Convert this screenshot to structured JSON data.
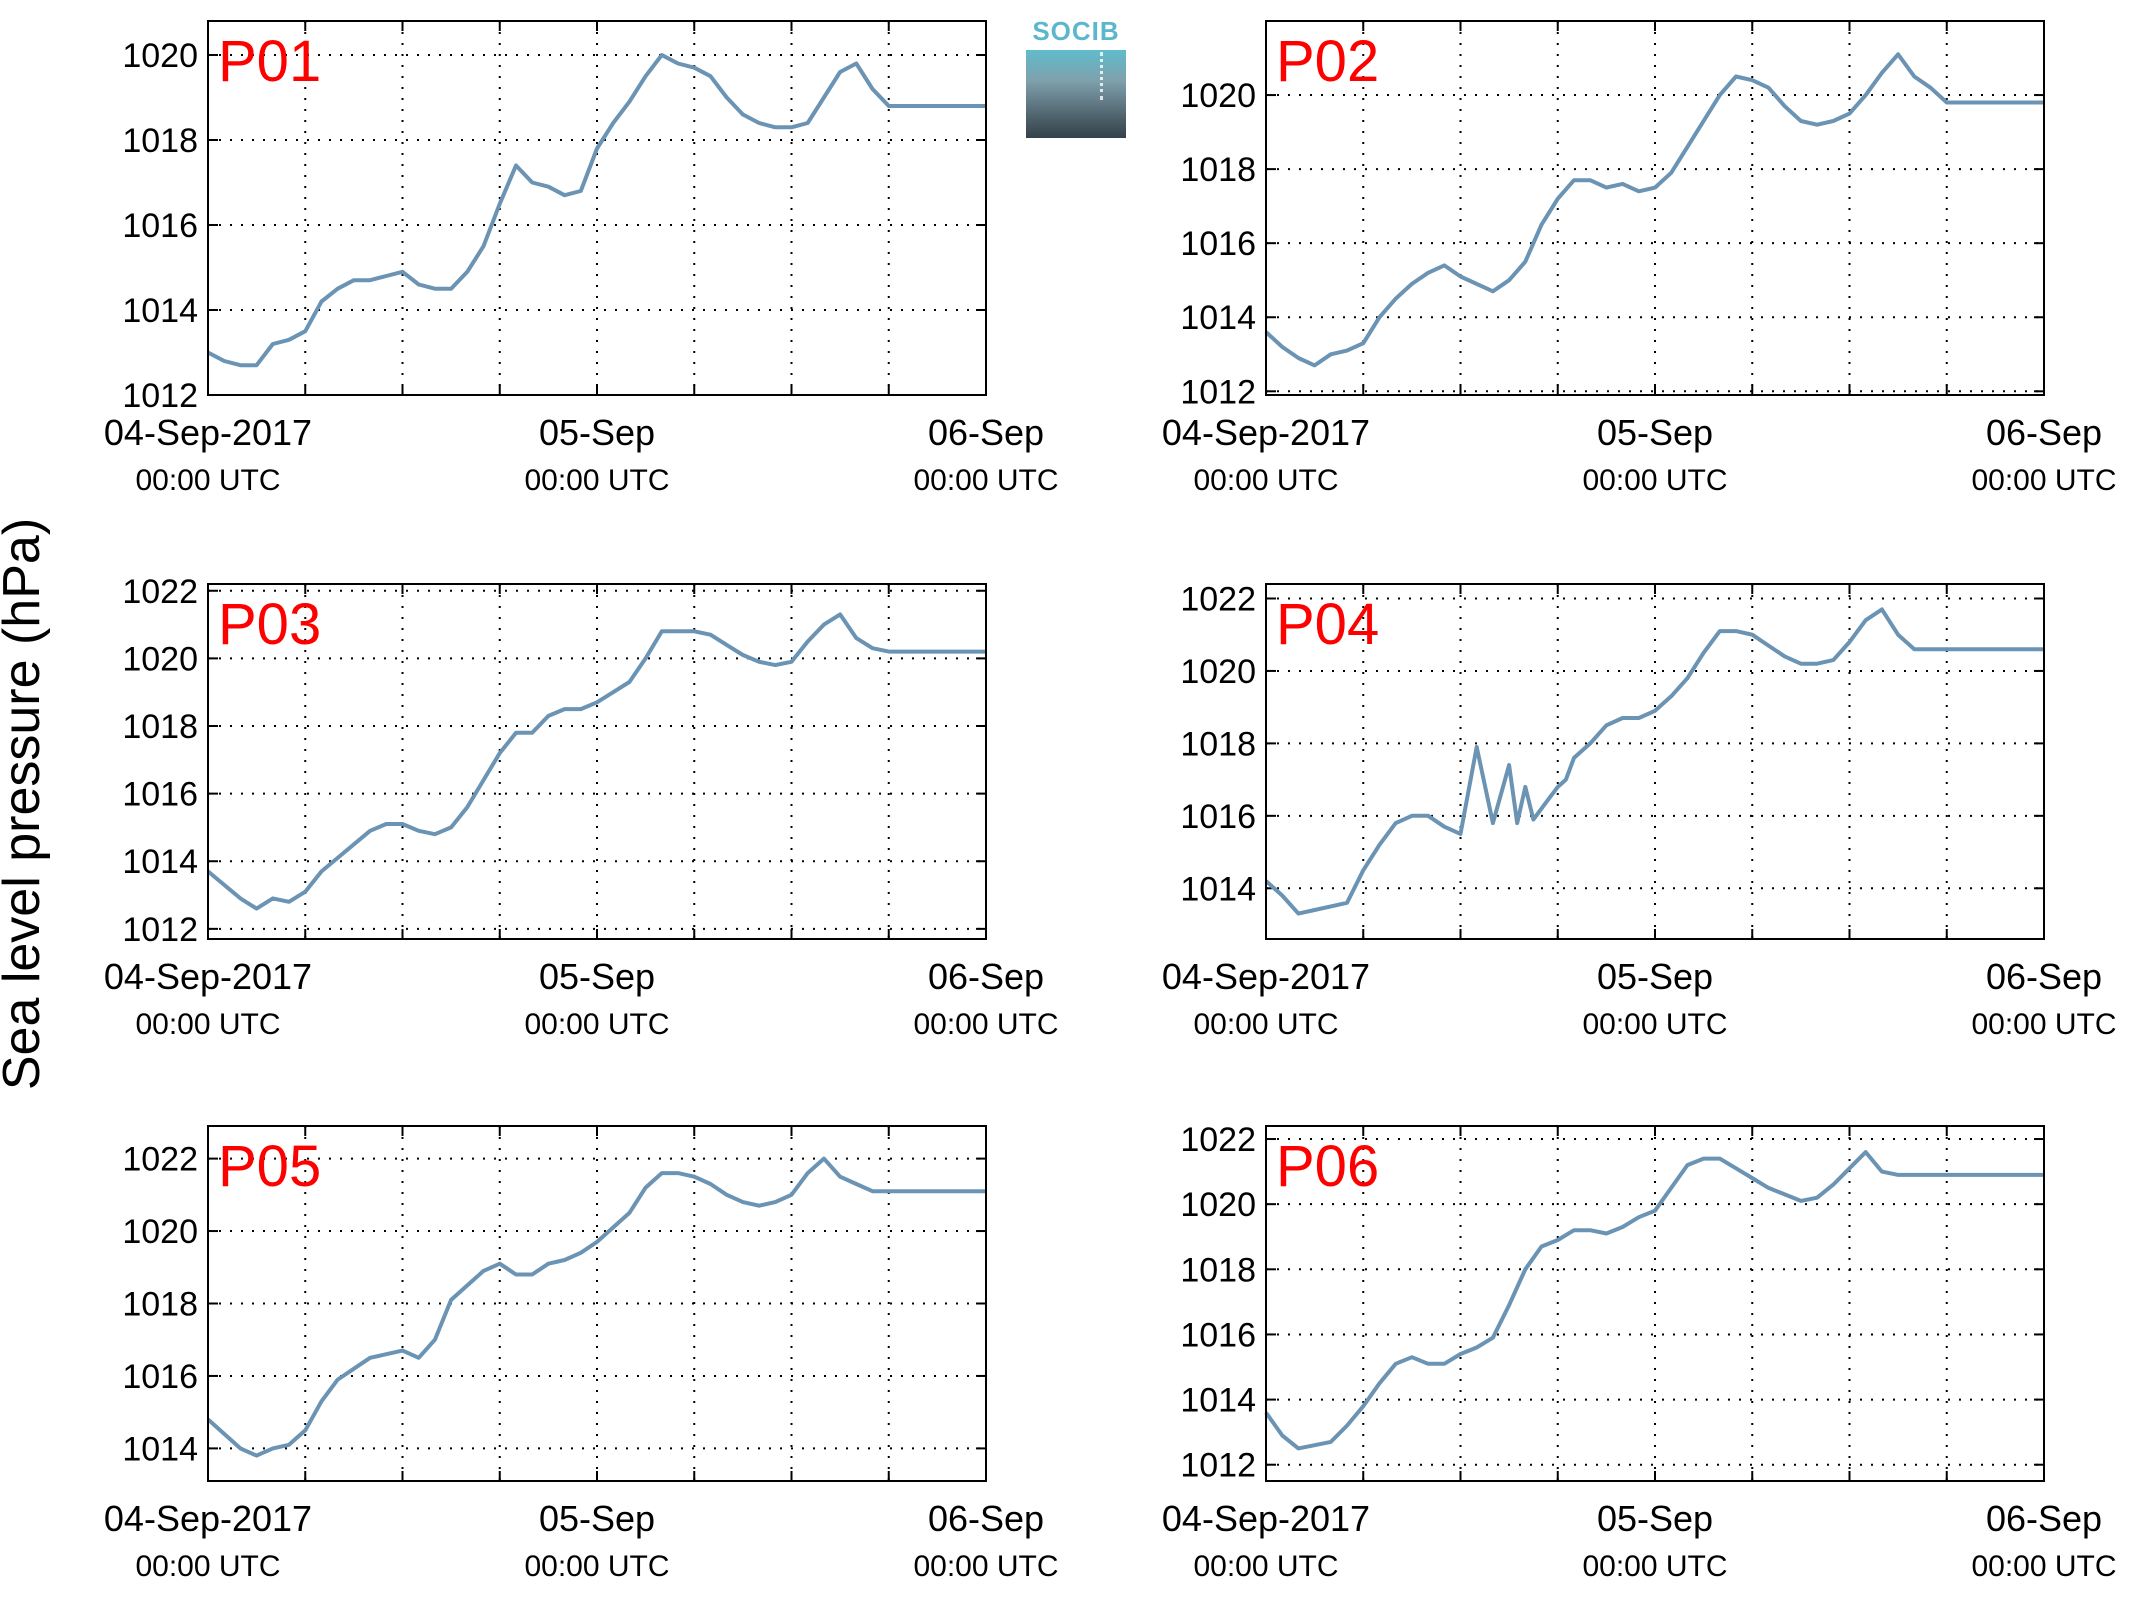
{
  "ylabel": "Sea level pressure (hPa)",
  "logo_text": "SOCIB",
  "line_color": "#6b93b3",
  "label_color": "#ff0000",
  "x_tick_labels": [
    {
      "date": "04-Sep-2017",
      "time": "00:00 UTC",
      "hours": 0
    },
    {
      "date": "05-Sep",
      "time": "00:00 UTC",
      "hours": 24
    },
    {
      "date": "06-Sep",
      "time": "00:00 UTC",
      "hours": 48
    }
  ],
  "chart_data": [
    {
      "type": "line",
      "title": "P01",
      "xlim": [
        0,
        48
      ],
      "ylim": [
        1012,
        1020.8
      ],
      "yticks": [
        1012,
        1014,
        1016,
        1018,
        1020
      ],
      "x": [
        0,
        1,
        2,
        3,
        4,
        5,
        6,
        7,
        8,
        9,
        10,
        11,
        12,
        13,
        14,
        15,
        16,
        17,
        18,
        19,
        20,
        21,
        22,
        23,
        24,
        25,
        26,
        27,
        28,
        29,
        30,
        31,
        32,
        33,
        34,
        35,
        36,
        37,
        38,
        39,
        40,
        41,
        42,
        43,
        44,
        45,
        46,
        47,
        48
      ],
      "y": [
        1013.0,
        1012.8,
        1012.7,
        1012.7,
        1013.2,
        1013.3,
        1013.5,
        1014.2,
        1014.5,
        1014.7,
        1014.7,
        1014.8,
        1014.9,
        1014.6,
        1014.5,
        1014.5,
        1014.9,
        1015.5,
        1016.5,
        1017.4,
        1017.0,
        1016.9,
        1016.7,
        1016.8,
        1017.8,
        1018.4,
        1018.9,
        1019.5,
        1020.0,
        1019.8,
        1019.7,
        1019.5,
        1019.0,
        1018.6,
        1018.4,
        1018.3,
        1018.3,
        1018.4,
        1019.0,
        1019.6,
        1019.8,
        1019.2,
        1018.8,
        1018.8,
        1018.8,
        1018.8,
        1018.8,
        1018.8,
        1018.8
      ]
    },
    {
      "type": "line",
      "title": "P02",
      "xlim": [
        0,
        48
      ],
      "ylim": [
        1011.9,
        1022.0
      ],
      "yticks": [
        1012,
        1014,
        1016,
        1018,
        1020
      ],
      "x": [
        0,
        1,
        2,
        3,
        4,
        5,
        6,
        7,
        8,
        9,
        10,
        11,
        12,
        13,
        14,
        15,
        16,
        17,
        18,
        19,
        20,
        21,
        22,
        23,
        24,
        25,
        26,
        27,
        28,
        29,
        30,
        31,
        32,
        33,
        34,
        35,
        36,
        37,
        38,
        39,
        40,
        41,
        42,
        43,
        44,
        45,
        46,
        47,
        48
      ],
      "y": [
        1013.6,
        1013.2,
        1012.9,
        1012.7,
        1013.0,
        1013.1,
        1013.3,
        1014.0,
        1014.5,
        1014.9,
        1015.2,
        1015.4,
        1015.1,
        1014.9,
        1014.7,
        1015.0,
        1015.5,
        1016.5,
        1017.2,
        1017.7,
        1017.7,
        1017.5,
        1017.6,
        1017.4,
        1017.5,
        1017.9,
        1018.6,
        1019.3,
        1020.0,
        1020.5,
        1020.4,
        1020.2,
        1019.7,
        1019.3,
        1019.2,
        1019.3,
        1019.5,
        1020.0,
        1020.6,
        1021.1,
        1020.5,
        1020.2,
        1019.8,
        1019.8,
        1019.8,
        1019.8,
        1019.8,
        1019.8,
        1019.8
      ]
    },
    {
      "type": "line",
      "title": "P03",
      "xlim": [
        0,
        48
      ],
      "ylim": [
        1011.7,
        1022.2
      ],
      "yticks": [
        1012,
        1014,
        1016,
        1018,
        1020,
        1022
      ],
      "x": [
        0,
        1,
        2,
        3,
        4,
        5,
        6,
        7,
        8,
        9,
        10,
        11,
        12,
        13,
        14,
        15,
        16,
        17,
        18,
        19,
        20,
        21,
        22,
        23,
        24,
        25,
        26,
        27,
        28,
        29,
        30,
        31,
        32,
        33,
        34,
        35,
        36,
        37,
        38,
        39,
        40,
        41,
        42,
        43,
        44,
        45,
        46,
        47,
        48
      ],
      "y": [
        1013.7,
        1013.3,
        1012.9,
        1012.6,
        1012.9,
        1012.8,
        1013.1,
        1013.7,
        1014.1,
        1014.5,
        1014.9,
        1015.1,
        1015.1,
        1014.9,
        1014.8,
        1015.0,
        1015.6,
        1016.4,
        1017.2,
        1017.8,
        1017.8,
        1018.3,
        1018.5,
        1018.5,
        1018.7,
        1019.0,
        1019.3,
        1020.0,
        1020.8,
        1020.8,
        1020.8,
        1020.7,
        1020.4,
        1020.1,
        1019.9,
        1019.8,
        1019.9,
        1020.5,
        1021.0,
        1021.3,
        1020.6,
        1020.3,
        1020.2,
        1020.2,
        1020.2,
        1020.2,
        1020.2,
        1020.2,
        1020.2
      ]
    },
    {
      "type": "line",
      "title": "P04",
      "xlim": [
        0,
        48
      ],
      "ylim": [
        1012.6,
        1022.4
      ],
      "yticks": [
        1014,
        1016,
        1018,
        1020,
        1022
      ],
      "x": [
        0,
        1,
        2,
        3,
        4,
        5,
        6,
        7,
        8,
        9,
        10,
        11,
        12,
        13,
        14,
        15,
        15.5,
        16,
        16.5,
        17,
        17.5,
        18,
        18.5,
        19,
        20,
        21,
        22,
        23,
        24,
        25,
        26,
        27,
        28,
        29,
        30,
        31,
        32,
        33,
        34,
        35,
        36,
        37,
        38,
        39,
        40,
        41,
        42,
        43,
        44,
        45,
        46,
        47,
        48
      ],
      "y": [
        1014.2,
        1013.8,
        1013.3,
        1013.4,
        1013.5,
        1013.6,
        1014.5,
        1015.2,
        1015.8,
        1016.0,
        1016.0,
        1015.7,
        1015.5,
        1017.9,
        1015.8,
        1017.4,
        1015.8,
        1016.8,
        1015.9,
        1016.2,
        1016.5,
        1016.8,
        1017.0,
        1017.6,
        1018.0,
        1018.5,
        1018.7,
        1018.7,
        1018.9,
        1019.3,
        1019.8,
        1020.5,
        1021.1,
        1021.1,
        1021.0,
        1020.7,
        1020.4,
        1020.2,
        1020.2,
        1020.3,
        1020.8,
        1021.4,
        1021.7,
        1021.0,
        1020.6,
        1020.6,
        1020.6,
        1020.6,
        1020.6,
        1020.6,
        1020.6,
        1020.6,
        1020.6
      ]
    },
    {
      "type": "line",
      "title": "P05",
      "xlim": [
        0,
        48
      ],
      "ylim": [
        1013.1,
        1022.9
      ],
      "yticks": [
        1014,
        1016,
        1018,
        1020,
        1022
      ],
      "x": [
        0,
        1,
        2,
        3,
        4,
        5,
        6,
        7,
        8,
        9,
        10,
        11,
        12,
        13,
        14,
        15,
        16,
        17,
        18,
        19,
        20,
        21,
        22,
        23,
        24,
        25,
        26,
        27,
        28,
        29,
        30,
        31,
        32,
        33,
        34,
        35,
        36,
        37,
        38,
        39,
        40,
        41,
        42,
        43,
        44,
        45,
        46,
        47,
        48
      ],
      "y": [
        1014.8,
        1014.4,
        1014.0,
        1013.8,
        1014.0,
        1014.1,
        1014.5,
        1015.3,
        1015.9,
        1016.2,
        1016.5,
        1016.6,
        1016.7,
        1016.5,
        1017.0,
        1018.1,
        1018.5,
        1018.9,
        1019.1,
        1018.8,
        1018.8,
        1019.1,
        1019.2,
        1019.4,
        1019.7,
        1020.1,
        1020.5,
        1021.2,
        1021.6,
        1021.6,
        1021.5,
        1021.3,
        1021.0,
        1020.8,
        1020.7,
        1020.8,
        1021.0,
        1021.6,
        1022.0,
        1021.5,
        1021.3,
        1021.1,
        1021.1,
        1021.1,
        1021.1,
        1021.1,
        1021.1,
        1021.1,
        1021.1
      ]
    },
    {
      "type": "line",
      "title": "P06",
      "xlim": [
        0,
        48
      ],
      "ylim": [
        1011.5,
        1022.4
      ],
      "yticks": [
        1012,
        1014,
        1016,
        1018,
        1020,
        1022
      ],
      "x": [
        0,
        1,
        2,
        3,
        4,
        5,
        6,
        7,
        8,
        9,
        10,
        11,
        12,
        13,
        14,
        15,
        16,
        17,
        18,
        19,
        20,
        21,
        22,
        23,
        24,
        25,
        26,
        27,
        28,
        29,
        30,
        31,
        32,
        33,
        34,
        35,
        36,
        37,
        38,
        39,
        40,
        41,
        42,
        43,
        44,
        45,
        46,
        47,
        48
      ],
      "y": [
        1013.6,
        1012.9,
        1012.5,
        1012.6,
        1012.7,
        1013.2,
        1013.8,
        1014.5,
        1015.1,
        1015.3,
        1015.1,
        1015.1,
        1015.4,
        1015.6,
        1015.9,
        1016.9,
        1018.0,
        1018.7,
        1018.9,
        1019.2,
        1019.2,
        1019.1,
        1019.3,
        1019.6,
        1019.8,
        1020.5,
        1021.2,
        1021.4,
        1021.4,
        1021.1,
        1020.8,
        1020.5,
        1020.3,
        1020.1,
        1020.2,
        1020.6,
        1021.1,
        1021.6,
        1021.0,
        1020.9,
        1020.9,
        1020.9,
        1020.9,
        1020.9,
        1020.9,
        1020.9,
        1020.9,
        1020.9,
        1020.9
      ]
    }
  ]
}
